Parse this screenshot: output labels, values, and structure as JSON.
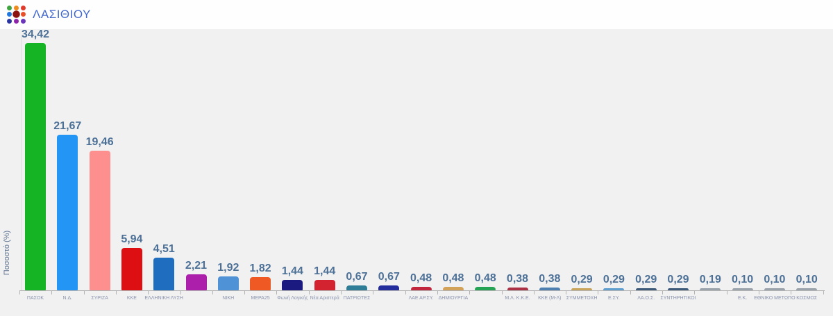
{
  "header": {
    "title": "ΛΑΣΙΘΙΟΥ",
    "logo_icon": "elections-dots-logo",
    "logo_colors": [
      "#3fa33f",
      "#ef8a1d",
      "#e03a2a",
      "#2277dd",
      "#8c1212",
      "#e8502a",
      "#2a35a0",
      "#8e24aa",
      "#6a35b8"
    ],
    "title_color": "#4268cb"
  },
  "chart_data": {
    "type": "bar",
    "title": "ΛΑΣΙΘΙΟΥ",
    "xlabel": "",
    "ylabel": "Ποσοστό (%)",
    "ylim": [
      0,
      36
    ],
    "grid": false,
    "legend": "none",
    "decimal_style": "comma",
    "categories": [
      "ΠΑΣΟΚ",
      "Ν.Δ.",
      "ΣΥΡΙΖΑ",
      "ΚΚΕ",
      "ΕΛΛΗΝΙΚΗ ΛΥΣΗ",
      "",
      "ΝΙΚΗ",
      "ΜΕΡΑ25",
      "Φωνή Λογικής",
      "Νέα Αριστερά",
      "ΠΑΤΡΙΩΤΕΣ",
      "",
      "ΛΑΕ ΑΡ.ΣΥ.",
      "ΔΗΜΙΟΥΡΓΙΑ",
      "",
      "Μ.Λ. Κ.Κ.Ε.",
      "ΚΚΕ (Μ-Λ)",
      "ΣΥΜΜΕΤΟΧΗ",
      "Ε.ΣΥ.",
      "ΛΑ.Ο.Σ.",
      "ΣΥΝΤΗΡΗΤΙΚΟΙ",
      "",
      "Ε.Κ.",
      "ΕΘΝΙΚΟ ΜΕΤΩΠΟ",
      "ΚΟΣΜΟΣ"
    ],
    "values": [
      34.42,
      21.67,
      19.46,
      5.94,
      4.51,
      2.21,
      1.92,
      1.82,
      1.44,
      1.44,
      0.67,
      0.67,
      0.48,
      0.48,
      0.48,
      0.38,
      0.38,
      0.29,
      0.29,
      0.29,
      0.29,
      0.19,
      0.1,
      0.1,
      0.1
    ],
    "value_labels": [
      "34,42",
      "21,67",
      "19,46",
      "5,94",
      "4,51",
      "2,21",
      "1,92",
      "1,82",
      "1,44",
      "1,44",
      "0,67",
      "0,67",
      "0,48",
      "0,48",
      "0,48",
      "0,38",
      "0,38",
      "0,29",
      "0,29",
      "0,29",
      "0,29",
      "0,19",
      "0,10",
      "0,10",
      "0,10"
    ],
    "bar_colors": [
      "#15b424",
      "#2395f5",
      "#fe8f8f",
      "#dd0f12",
      "#1f6dbf",
      "#ab1fab",
      "#4f93d6",
      "#ef5a24",
      "#1a1a80",
      "#d42330",
      "#2f7d96",
      "#232d9c",
      "#c2263c",
      "#d2a258",
      "#27a355",
      "#ab3144",
      "#4d7fb0",
      "#c9a45b",
      "#5f9fd0",
      "#3e5a7a",
      "#3e5a7a",
      "#9aa2ab",
      "#9aa2ab",
      "#9aa2ab",
      "#9aa2ab"
    ],
    "value_label_color": "#4c7096",
    "axis_color": "#b3b3b3"
  }
}
